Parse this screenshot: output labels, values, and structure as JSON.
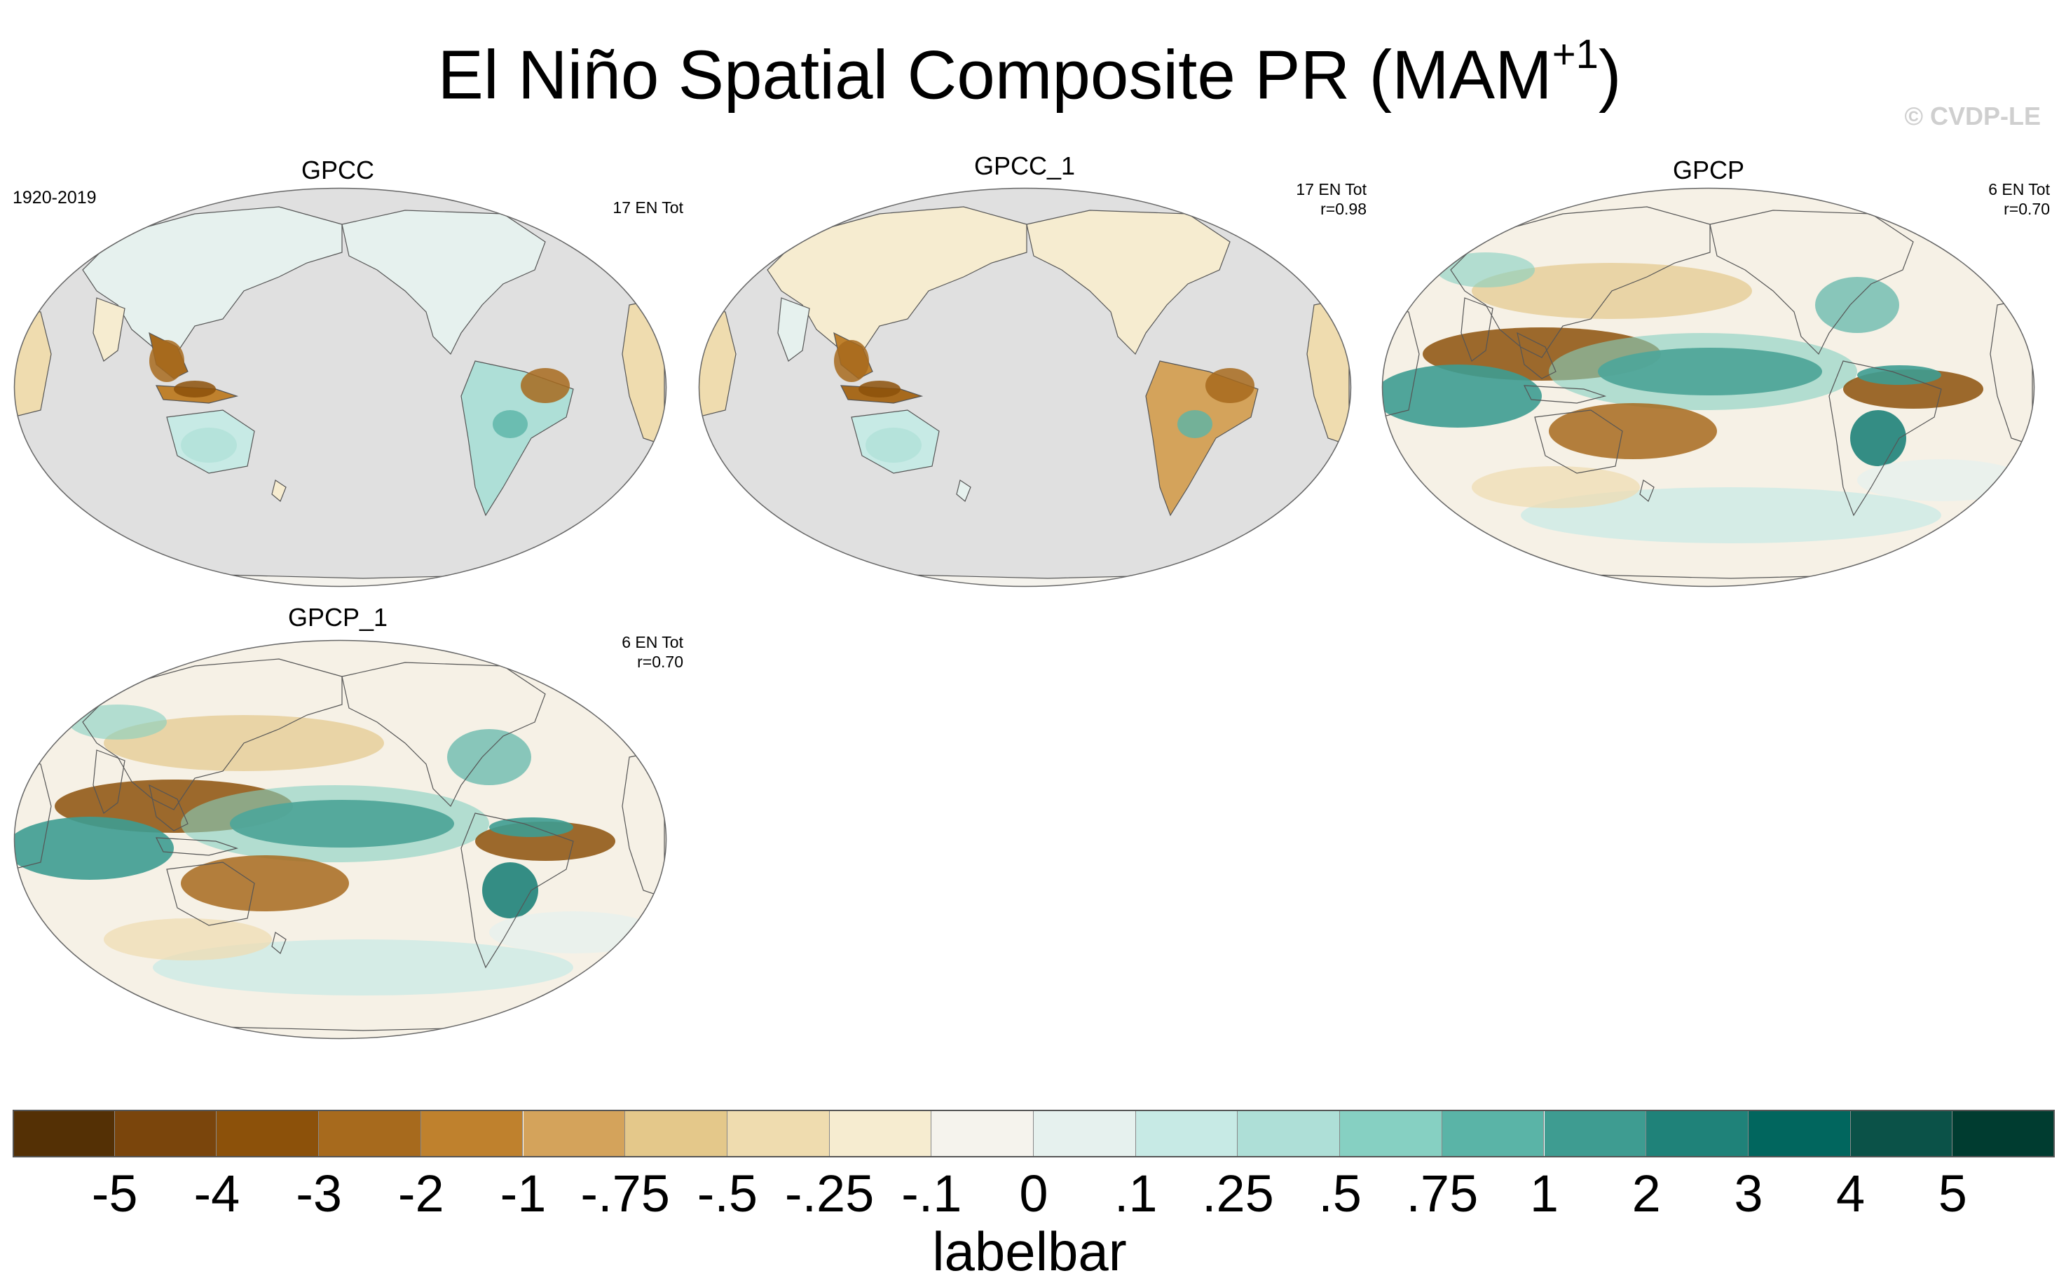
{
  "title": {
    "main": "El Niño Spatial Composite PR (MAM",
    "sup": "+1",
    "close": ")"
  },
  "watermark": "© CVDP-LE",
  "panels": [
    {
      "name": "GPCC",
      "left_label": "1920-2019",
      "stat_line1": "17 EN Tot",
      "stat_line2": "",
      "ocean_data": false
    },
    {
      "name": "GPCC_1",
      "left_label": "",
      "stat_line1": "17 EN Tot",
      "stat_line2": "r=0.98",
      "ocean_data": false
    },
    {
      "name": "GPCP",
      "left_label": "",
      "stat_line1": "6 EN Tot",
      "stat_line2": "r=0.70",
      "ocean_data": true
    },
    {
      "name": "GPCP_1",
      "left_label": "",
      "stat_line1": "6 EN Tot",
      "stat_line2": "r=0.70",
      "ocean_data": true
    }
  ],
  "colorbar": {
    "title": "labelbar",
    "ticks": [
      "-5",
      "-4",
      "-3",
      "-2",
      "-1",
      "-.75",
      "-.5",
      "-.25",
      "-.1",
      "0",
      ".1",
      ".25",
      ".5",
      ".75",
      "1",
      "2",
      "3",
      "4",
      "5"
    ],
    "colors": [
      "#543005",
      "#7a450c",
      "#8c510a",
      "#a76a1d",
      "#bf812d",
      "#d4a35b",
      "#e4c88a",
      "#efdcaf",
      "#f6ecd0",
      "#f5f3ed",
      "#e6f1ee",
      "#c7eae5",
      "#aedfd7",
      "#86d0c2",
      "#5ab4a7",
      "#3e9c91",
      "#1f8279",
      "#01665e",
      "#0b5248",
      "#003c30"
    ]
  }
}
